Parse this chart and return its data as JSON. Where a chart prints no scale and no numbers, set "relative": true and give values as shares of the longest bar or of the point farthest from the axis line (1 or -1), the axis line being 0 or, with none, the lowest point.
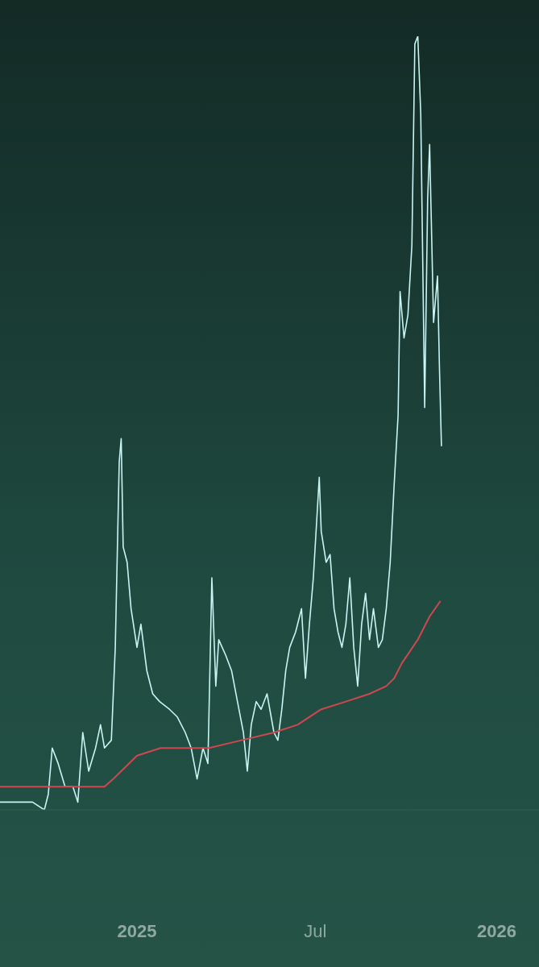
{
  "chart_data": {
    "type": "line",
    "relative": true,
    "grid": false,
    "legend": false,
    "marker": "none",
    "line_style": "solid",
    "xlim": [
      "2024-08-15",
      "2026-02-13"
    ],
    "xticks": [
      {
        "value": "2025-01-01",
        "label": "2025"
      },
      {
        "value": "2025-07-01",
        "label": "Jul"
      },
      {
        "value": "2026-01-01",
        "label": "2026"
      }
    ],
    "series": [
      {
        "color": "#c8f4f4",
        "x": [
          "2024-08-15",
          "2024-09-01",
          "2024-09-17",
          "2024-09-29",
          "2024-10-03",
          "2024-10-07",
          "2024-10-13",
          "2024-10-20",
          "2024-10-28",
          "2024-11-02",
          "2024-11-07",
          "2024-11-13",
          "2024-11-20",
          "2024-11-25",
          "2024-11-29",
          "2024-12-06",
          "2024-12-10",
          "2024-12-14",
          "2024-12-16",
          "2024-12-18",
          "2024-12-22",
          "2024-12-26",
          "2025-01-01",
          "2025-01-05",
          "2025-01-11",
          "2025-01-17",
          "2025-01-24",
          "2025-02-03",
          "2025-02-11",
          "2025-02-19",
          "2025-02-25",
          "2025-03-03",
          "2025-03-09",
          "2025-03-14",
          "2025-03-18",
          "2025-03-22",
          "2025-03-25",
          "2025-04-01",
          "2025-04-07",
          "2025-04-13",
          "2025-04-19",
          "2025-04-23",
          "2025-04-27",
          "2025-05-02",
          "2025-05-07",
          "2025-05-13",
          "2025-05-20",
          "2025-05-24",
          "2025-05-28",
          "2025-06-01",
          "2025-06-05",
          "2025-06-11",
          "2025-06-17",
          "2025-06-21",
          "2025-06-25",
          "2025-06-29",
          "2025-07-05",
          "2025-07-07",
          "2025-07-12",
          "2025-07-16",
          "2025-07-20",
          "2025-07-24",
          "2025-07-28",
          "2025-08-01",
          "2025-08-05",
          "2025-08-09",
          "2025-08-13",
          "2025-08-17",
          "2025-08-21",
          "2025-08-25",
          "2025-08-29",
          "2025-09-03",
          "2025-09-07",
          "2025-09-11",
          "2025-09-15",
          "2025-09-19",
          "2025-09-23",
          "2025-09-25",
          "2025-09-29",
          "2025-10-03",
          "2025-10-07",
          "2025-10-10",
          "2025-10-13",
          "2025-10-16",
          "2025-10-20",
          "2025-10-23",
          "2025-10-25",
          "2025-10-29",
          "2025-11-02",
          "2025-11-04",
          "2025-11-06"
        ],
        "values": [
          0.01,
          0.01,
          0.01,
          0,
          0.02,
          0.08,
          0.06,
          0.03,
          0.03,
          0.01,
          0.1,
          0.05,
          0.08,
          0.11,
          0.08,
          0.09,
          0.21,
          0.45,
          0.48,
          0.34,
          0.32,
          0.26,
          0.21,
          0.24,
          0.18,
          0.15,
          0.14,
          0.13,
          0.12,
          0.1,
          0.08,
          0.04,
          0.08,
          0.06,
          0.3,
          0.16,
          0.22,
          0.2,
          0.18,
          0.14,
          0.1,
          0.05,
          0.11,
          0.14,
          0.13,
          0.15,
          0.1,
          0.09,
          0.13,
          0.18,
          0.21,
          0.23,
          0.26,
          0.17,
          0.24,
          0.3,
          0.43,
          0.36,
          0.32,
          0.33,
          0.26,
          0.23,
          0.21,
          0.24,
          0.3,
          0.21,
          0.16,
          0.24,
          0.28,
          0.22,
          0.26,
          0.21,
          0.22,
          0.26,
          0.32,
          0.42,
          0.51,
          0.67,
          0.61,
          0.64,
          0.73,
          0.99,
          1,
          0.9,
          0.52,
          0.79,
          0.86,
          0.63,
          0.69,
          0.57,
          0.47
        ]
      },
      {
        "color": "#d0474f",
        "x": [
          "2024-08-15",
          "2024-09-25",
          "2024-11-05",
          "2024-11-29",
          "2024-12-08",
          "2024-12-16",
          "2025-01-01",
          "2025-01-25",
          "2025-02-27",
          "2025-03-15",
          "2025-04-17",
          "2025-05-20",
          "2025-06-13",
          "2025-07-07",
          "2025-08-01",
          "2025-08-25",
          "2025-09-11",
          "2025-09-19",
          "2025-09-27",
          "2025-10-13",
          "2025-10-25",
          "2025-11-05"
        ],
        "values": [
          0.03,
          0.03,
          0.03,
          0.03,
          0.04,
          0.05,
          0.07,
          0.08,
          0.08,
          0.08,
          0.09,
          0.1,
          0.11,
          0.13,
          0.14,
          0.15,
          0.16,
          0.17,
          0.19,
          0.22,
          0.25,
          0.27
        ]
      }
    ]
  }
}
